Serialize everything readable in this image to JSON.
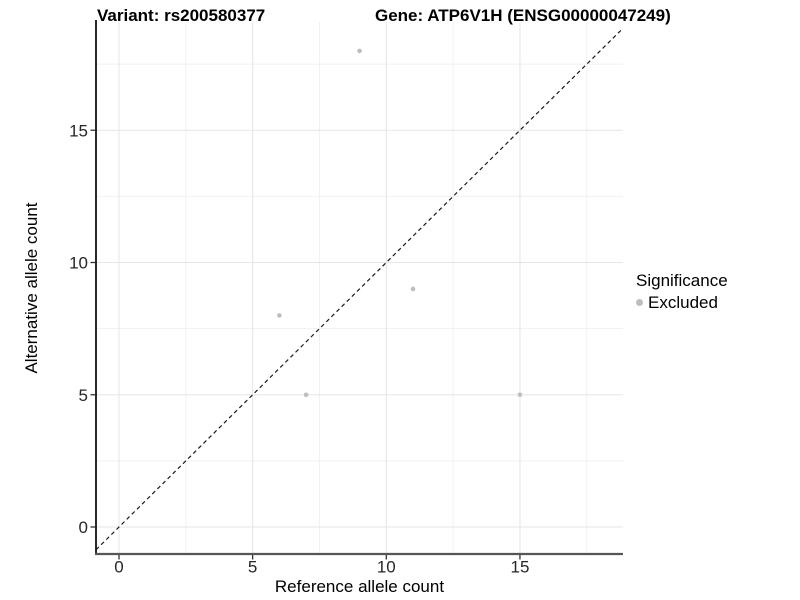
{
  "header": {
    "title_left": "Variant: rs200580377",
    "title_right": "Gene: ATP6V1H (ENSG00000047249)"
  },
  "chart_data": {
    "type": "scatter",
    "title": "Variant: rs200580377   Gene: ATP6V1H (ENSG00000047249)",
    "xlabel": "Reference allele count",
    "ylabel": "Alternative allele count",
    "xlim": [
      -0.9,
      18.9
    ],
    "ylim": [
      -1.05,
      19.1
    ],
    "x_ticks": [
      0,
      5,
      10,
      15
    ],
    "y_ticks": [
      0,
      5,
      10,
      15
    ],
    "x_minor_ticks": [
      2.5,
      7.5,
      12.5,
      17.5
    ],
    "y_minor_ticks": [
      2.5,
      7.5,
      12.5,
      17.5
    ],
    "grid": true,
    "identity_line": {
      "slope": 1,
      "intercept": 0,
      "style": "dashed",
      "color": "#1a1a1a"
    },
    "series": [
      {
        "name": "Excluded",
        "color": "#bebebe",
        "points": [
          {
            "x": 6,
            "y": 8
          },
          {
            "x": 7,
            "y": 5
          },
          {
            "x": 9,
            "y": 18
          },
          {
            "x": 11,
            "y": 9
          },
          {
            "x": 15,
            "y": 5
          }
        ]
      }
    ],
    "legend": {
      "title": "Significance",
      "position": "right",
      "items": [
        {
          "label": "Excluded",
          "color": "#bebebe"
        }
      ]
    },
    "style": {
      "grid_major": "#e6e6e6",
      "grid_minor": "#f0f0f0",
      "axis_line_left": "#111111",
      "axis_line_bottom": "#565656",
      "tick_color": "#333333",
      "tick_label_color": "#262626",
      "point_color": "#bebebe"
    }
  }
}
